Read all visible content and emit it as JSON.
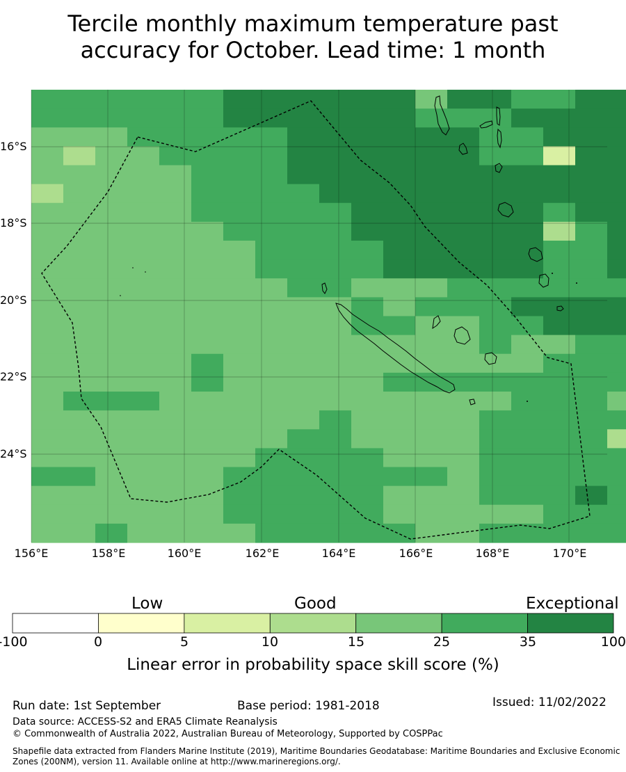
{
  "title": {
    "line1": "Tercile monthly maximum temperature past",
    "line2": "accuracy for October. Lead time: 1 month"
  },
  "map": {
    "lon_labels": [
      "156°E",
      "158°E",
      "160°E",
      "162°E",
      "164°E",
      "166°E",
      "168°E",
      "170°E"
    ],
    "lat_labels": [
      "16°S",
      "18°S",
      "20°S",
      "22°S",
      "24°S"
    ],
    "colors": {
      "c1": "#77c679",
      "c2": "#41ab5d",
      "c3": "#238443",
      "c4": "#addd8e",
      "c5": "#d9f0a3"
    },
    "grid": [
      "22222233333313322333",
      "22222233333322233333",
      "11122222333333223333",
      "14112222333333225333",
      "11111222333333333333",
      "41111222233333333333",
      "11111222223333332333",
      "11111122223333334233",
      "11111112222333332233",
      "11111112222333332233",
      "11111111221112222222",
      "11111111112122233332",
      "11111111112211223332",
      "11111111111111211222",
      "11111211111111112223",
      "11111211111222222222",
      "12221111111111122212",
      "11111111121111222222",
      "11111111221111222242",
      "11111112222111222222",
      "22111122222221222222",
      "11111122222111222322",
      "11111122222111112222",
      "11211112222211222222"
    ]
  },
  "legend": {
    "category_low": "Low",
    "category_good": "Good",
    "category_exceptional": "Exceptional",
    "ticks": [
      "-100",
      "0",
      "5",
      "10",
      "15",
      "25",
      "35",
      "100"
    ],
    "colors": [
      "#ffffff",
      "#ffffcc",
      "#d9f0a3",
      "#addd8e",
      "#78c679",
      "#41ab5d",
      "#238443"
    ],
    "title": "Linear error in probability space skill score (%)"
  },
  "footer": {
    "run_date": "Run date: 1st September",
    "base_period": "Base period: 1981-2018",
    "issued": "Issued: 11/02/2022",
    "data_source": "Data source: ACCESS-S2 and ERA5 Climate Reanalysis",
    "copyright": "© Commonwealth of Australia 2022, Australian Bureau of Meteorology, Supported by COSPPac",
    "shapefile": "Shapefile data extracted from Flanders Marine Institute (2019), Maritime Boundaries Geodatabase: Maritime Boundaries and Exclusive Economic Zones (200NM), version 11. Available online at http://www.marineregions.org/."
  }
}
